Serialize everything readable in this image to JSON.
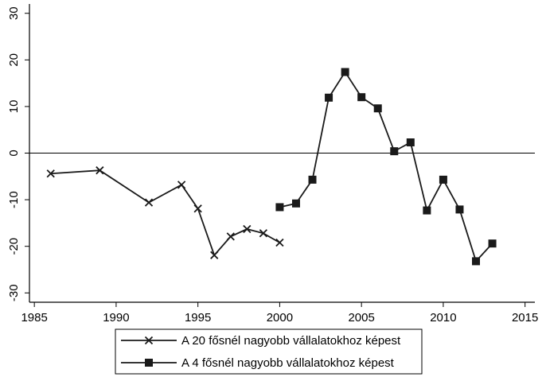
{
  "chart_data": {
    "type": "line",
    "series": [
      {
        "name": "A 20 fősnél nagyobb vállalatokhoz képest",
        "color": "#1a1a1a",
        "marker": "x",
        "x": [
          1986,
          1989,
          1992,
          1994,
          1995,
          1996,
          1997,
          1998,
          1999,
          2000
        ],
        "values": [
          -4.4,
          -3.7,
          -10.6,
          -6.8,
          -11.9,
          -21.9,
          -17.9,
          -16.3,
          -17.2,
          -19.2
        ]
      },
      {
        "name": "A 4 fősnél nagyobb vállalatokhoz képest",
        "color": "#1a1a1a",
        "marker": "square",
        "x": [
          2000,
          2001,
          2002,
          2003,
          2004,
          2005,
          2006,
          2007,
          2008,
          2009,
          2010,
          2011,
          2012,
          2013
        ],
        "values": [
          -11.6,
          -10.8,
          -5.7,
          11.9,
          17.4,
          12.0,
          9.6,
          0.4,
          2.3,
          -12.3,
          -5.7,
          -12.1,
          -23.2,
          -19.4
        ]
      }
    ],
    "xlim": [
      1984.7,
      2015.6
    ],
    "xticks": [
      1985,
      1990,
      1995,
      2000,
      2005,
      2010,
      2015
    ],
    "ylim": [
      -32,
      32
    ],
    "yticks": [
      -30,
      -20,
      -10,
      0,
      10,
      20,
      30
    ],
    "reference_line": 0,
    "grid": false,
    "legend": "bottom"
  }
}
